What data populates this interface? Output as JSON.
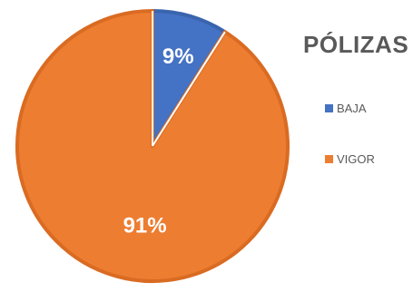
{
  "chart_data": {
    "type": "pie",
    "title": "PÓLIZAS",
    "categories": [
      "BAJA",
      "VIGOR"
    ],
    "values": [
      9,
      91
    ],
    "labels": [
      "9%",
      "91%"
    ],
    "colors": [
      "#4472C4",
      "#ED7D31"
    ],
    "legend_position": "right"
  }
}
